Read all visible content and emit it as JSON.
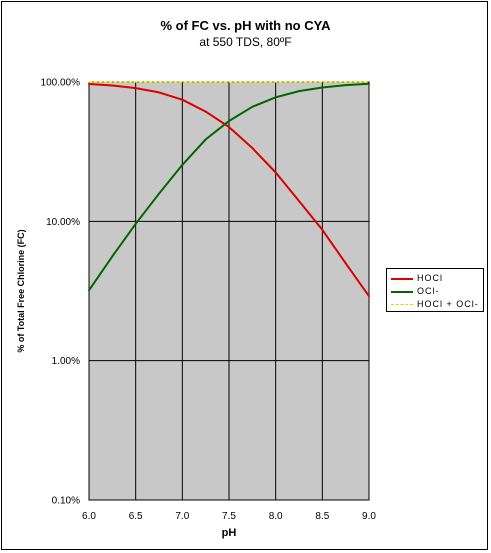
{
  "chart_data": {
    "type": "line",
    "title": "% of FC vs. pH with no CYA",
    "subtitle": "at 550 TDS, 80ºF",
    "xlabel": "pH",
    "ylabel": "% of Total Free Chlorine (FC)",
    "xlim": [
      6.0,
      9.0
    ],
    "ylim": [
      0.1,
      100
    ],
    "yscale": "log",
    "x_ticks": [
      "6.0",
      "6.5",
      "7.0",
      "7.5",
      "8.0",
      "8.5",
      "9.0"
    ],
    "y_ticks": [
      "0.10%",
      "1.00%",
      "10.00%",
      "100.00%"
    ],
    "grid": true,
    "legend_position": "right",
    "x": [
      6.0,
      6.25,
      6.5,
      6.75,
      7.0,
      7.25,
      7.5,
      7.75,
      8.0,
      8.25,
      8.5,
      8.75,
      9.0
    ],
    "series": [
      {
        "name": "HOCl",
        "color": "#dd0000",
        "values": [
          96.8,
          94.4,
          90.4,
          84.2,
          74.6,
          61.3,
          47.5,
          33.6,
          22.4,
          14.0,
          8.7,
          5.0,
          2.9
        ]
      },
      {
        "name": "OCl-",
        "color": "#006600",
        "values": [
          3.2,
          5.6,
          9.6,
          15.8,
          25.4,
          38.7,
          52.5,
          66.4,
          77.6,
          86.0,
          91.3,
          95.0,
          97.1
        ]
      },
      {
        "name": "HOCl + OCl-",
        "color": "#eeee00",
        "values": [
          100,
          100,
          100,
          100,
          100,
          100,
          100,
          100,
          100,
          100,
          100,
          100,
          100
        ]
      }
    ]
  },
  "legend": {
    "labels": [
      "HOCl",
      "OCl-",
      "HOCl + OCl-"
    ]
  },
  "colors": {
    "plot_background": "#c8c8c8",
    "gridline": "#000000",
    "frame": "#000000"
  }
}
